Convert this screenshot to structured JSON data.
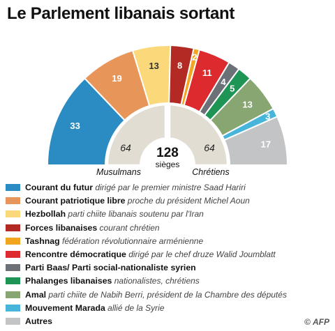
{
  "title": "Le Parlement libanais sortant",
  "chart_data": {
    "type": "pie",
    "subtype": "hemicycle",
    "total": "128",
    "total_label": "sièges",
    "blocs": [
      {
        "name": "Musulmans",
        "value": 64
      },
      {
        "name": "Chrétiens",
        "value": 64
      }
    ],
    "series": [
      {
        "name": "Courant du futur",
        "description": "dirigé par le premier ministre Saad Hariri",
        "value": 33,
        "color": "#2a8cc2"
      },
      {
        "name": "Courant patriotique libre",
        "description": "proche du président Michel Aoun",
        "value": 19,
        "color": "#e8955a"
      },
      {
        "name": "Hezbollah",
        "description": "parti chiite libanais soutenu par l'Iran",
        "value": 13,
        "color": "#fbd97a"
      },
      {
        "name": "Forces libanaises",
        "description": "courant chrétien",
        "value": 8,
        "color": "#b32a24"
      },
      {
        "name": "Tashnag",
        "description": "fédération révolutionnaire arménienne",
        "value": 2,
        "color": "#f2a520"
      },
      {
        "name": "Rencontre démocratique",
        "description": "dirigé par le chef druze Walid Joumblatt",
        "value": 11,
        "color": "#dd2a2e"
      },
      {
        "name": "Parti Baas/ Parti social-nationaliste syrien",
        "description": "",
        "value": 4,
        "color": "#6c7177"
      },
      {
        "name": "Phalanges libanaises",
        "description": "nationalistes, chrétiens",
        "value": 5,
        "color": "#1e9455"
      },
      {
        "name": "Amal",
        "description": "parti chiite de Nabih Berri, président de la Chambre des députés",
        "value": 13,
        "color": "#88a672"
      },
      {
        "name": "Mouvement Marada",
        "description": "allié de la Syrie",
        "value": 3,
        "color": "#46b5d9"
      },
      {
        "name": "Autres",
        "description": "",
        "value": 17,
        "color": "#c3c4c6"
      }
    ]
  },
  "credit": {
    "symbol": "©",
    "text": "AFP"
  }
}
